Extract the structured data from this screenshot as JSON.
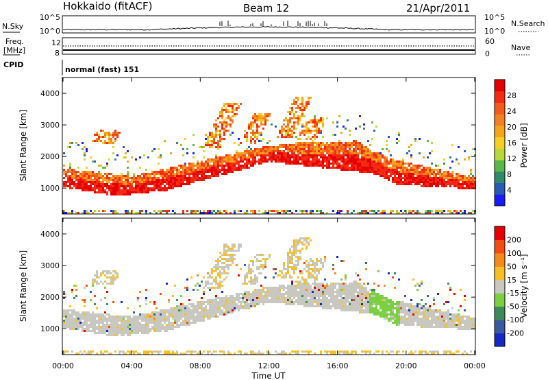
{
  "header": {
    "station": "Hokkaido (fitACF)",
    "beam": "Beam 12",
    "date": "21/Apr/2011"
  },
  "top_panels": {
    "nsky_label": "N.Sky",
    "nsky_ticks": [
      "10^5",
      "10^0"
    ],
    "nsearch_label": "N.Search",
    "freq_label_line1": "Freq.",
    "freq_label_line2": "[MHz]",
    "freq_ticks": [
      "12",
      "8"
    ],
    "nave_ticks": [
      "60",
      "0"
    ],
    "nave_label": "Nave",
    "cpid_label": "CPID",
    "cpid_value": "normal (fast) 151"
  },
  "chart_data": [
    {
      "type": "heatmap",
      "variable": "power",
      "ylabel": "Slant Range [km]",
      "yticks": [
        1000,
        2000,
        3000,
        4000
      ],
      "ylim": [
        180,
        4500
      ],
      "xlim": [
        0,
        24
      ],
      "colorbar_label": "Power [dB]",
      "colorbar_ticks": [
        28,
        24,
        20,
        16,
        12,
        8,
        4
      ],
      "colorbar_range": [
        0,
        32
      ],
      "colors": [
        "#1a1aff",
        "#285ab8",
        "#2f8a6a",
        "#5ab84a",
        "#b8d838",
        "#f5d020",
        "#f5a516",
        "#f58020",
        "#f55a18",
        "#f52a10",
        "#e60000"
      ]
    },
    {
      "type": "heatmap",
      "variable": "velocity",
      "ylabel": "Slant Range [km]",
      "yticks": [
        1000,
        2000,
        3000,
        4000
      ],
      "ylim": [
        180,
        4500
      ],
      "xlim": [
        0,
        24
      ],
      "xticks": [
        "00:00",
        "04:00",
        "08:00",
        "12:00",
        "16:00",
        "20:00",
        "00:00"
      ],
      "xlabel": "Time UT",
      "colorbar_label": "Velocity [m s⁻¹]",
      "colorbar_ticks": [
        200,
        100,
        50,
        15,
        -15,
        -50,
        -100,
        -200
      ],
      "colors": [
        "#1428c8",
        "#3a5aa0",
        "#3c8a5a",
        "#7ad040",
        "#c8c8c0",
        "#f5c020",
        "#f58a18",
        "#f54a10",
        "#e60000"
      ]
    }
  ]
}
